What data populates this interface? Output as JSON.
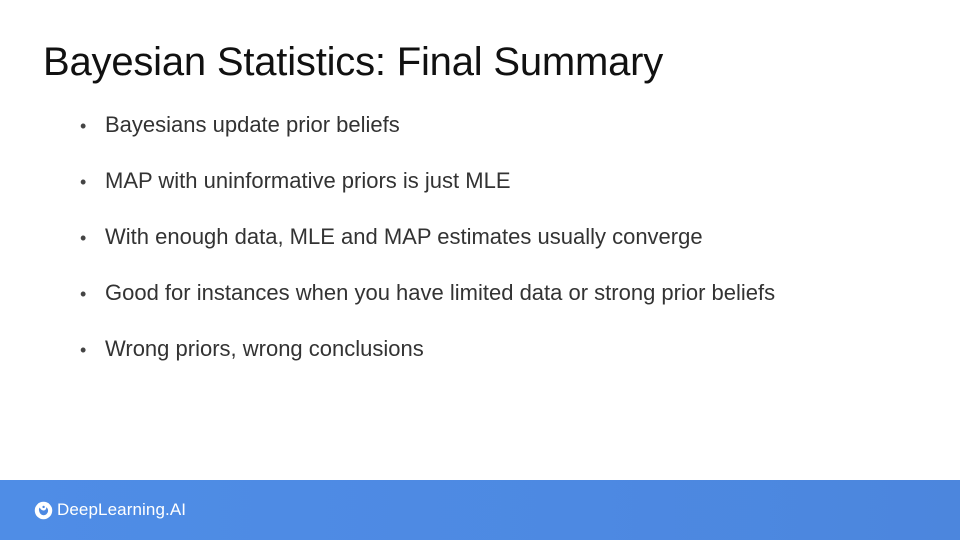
{
  "slide": {
    "title": "Bayesian Statistics: Final Summary",
    "bullets": [
      "Bayesians update prior beliefs",
      "MAP with uninformative priors is just MLE",
      "With enough data, MLE and MAP estimates usually converge",
      "Good for instances when you have limited data or strong prior beliefs",
      "Wrong priors, wrong conclusions"
    ],
    "bullet_symbol": "•"
  },
  "footer": {
    "logo_text": "DeepLearning.AI",
    "logo_icon": "deeplearning-ai-logo-icon",
    "background_color": "#4d89e2",
    "logo_color": "#ffffff"
  }
}
